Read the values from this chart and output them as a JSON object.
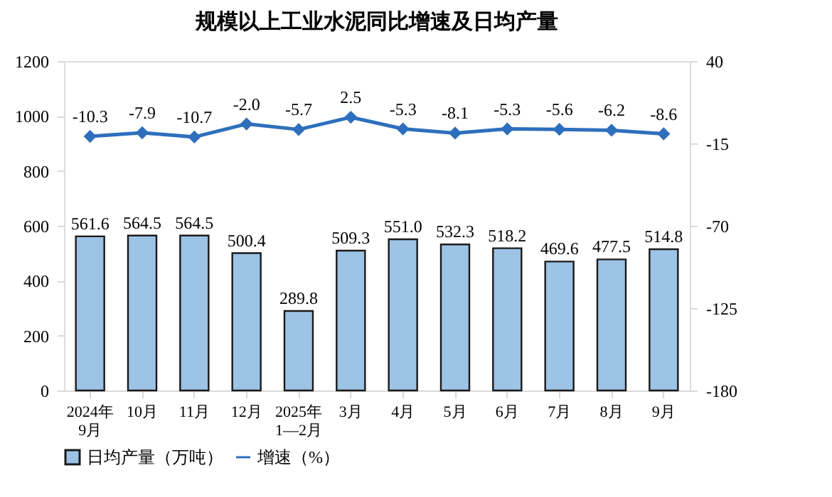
{
  "chart_data": {
    "type": "bar",
    "title": "规模以上工业水泥同比增速及日均产量",
    "categories": [
      "2024年\n9月",
      "10月",
      "11月",
      "12月",
      "2025年\n1—2月",
      "3月",
      "4月",
      "5月",
      "6月",
      "7月",
      "8月",
      "9月"
    ],
    "series": [
      {
        "name": "日均产量（万吨）",
        "color": "#9dc3e6",
        "values": [
          561.6,
          564.5,
          564.5,
          500.4,
          289.8,
          509.3,
          551.0,
          532.3,
          518.2,
          469.6,
          477.5,
          514.8
        ],
        "value_labels": [
          "561.6",
          "564.5",
          "564.5",
          "500.4",
          "289.8",
          "509.3",
          "551.0",
          "532.3",
          "518.2",
          "469.6",
          "477.5",
          "514.8"
        ]
      },
      {
        "name": "增速（%）",
        "type": "line",
        "axis": "y2",
        "color": "#2e6fbd",
        "values": [
          -10.3,
          -7.9,
          -10.7,
          -2.0,
          -5.7,
          2.5,
          -5.3,
          -8.1,
          -5.3,
          -5.6,
          -6.2,
          -8.6
        ],
        "value_labels": [
          "-10.3",
          "-7.9",
          "-10.7",
          "-2.0",
          "-5.7",
          "2.5",
          "-5.3",
          "-8.1",
          "-5.3",
          "-5.6",
          "-6.2",
          "-8.6"
        ]
      }
    ],
    "ylim": [
      0,
      1200
    ],
    "yticks": [
      0,
      200,
      400,
      600,
      800,
      1000,
      1200
    ],
    "y2lim": [
      -180,
      40
    ],
    "y2ticks": [
      -180,
      -125,
      -70,
      -15,
      40
    ],
    "legend": "bottom",
    "marker": "diamond",
    "line_style": "solid",
    "grid": false
  }
}
